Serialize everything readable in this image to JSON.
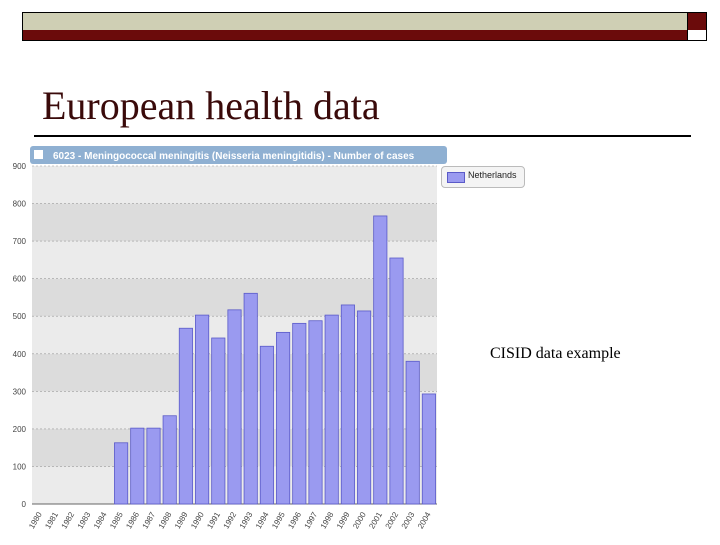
{
  "slide": {
    "title": "European health data",
    "caption": "CISID data example"
  },
  "colors": {
    "bar_fill": "#9a9af0",
    "bar_stroke": "#5a5ac8",
    "header_bg": "#8fb0d2",
    "band_dark": "#dcdcdc",
    "band_light": "#ebebeb",
    "slide_bar": "#cfcfb4",
    "slide_accent": "#6b0b0b"
  },
  "chart_data": {
    "type": "bar",
    "title": "6023 - Meningococcal meningitis (Neisseria meningitidis) - Number of cases",
    "legend_position": "top-right",
    "grid": true,
    "ylim": [
      0,
      900
    ],
    "yticks": [
      0,
      100,
      200,
      300,
      400,
      500,
      600,
      700,
      800,
      900
    ],
    "categories": [
      "1980",
      "1981",
      "1982",
      "1983",
      "1984",
      "1985",
      "1986",
      "1987",
      "1988",
      "1989",
      "1990",
      "1991",
      "1992",
      "1993",
      "1994",
      "1995",
      "1996",
      "1997",
      "1998",
      "1999",
      "2000",
      "2001",
      "2002",
      "2003",
      "2004"
    ],
    "series": [
      {
        "name": "Netherlands",
        "values": [
          null,
          null,
          null,
          null,
          null,
          163,
          202,
          202,
          235,
          468,
          503,
          442,
          517,
          561,
          420,
          457,
          481,
          488,
          503,
          530,
          514,
          767,
          655,
          380,
          293
        ]
      }
    ]
  }
}
